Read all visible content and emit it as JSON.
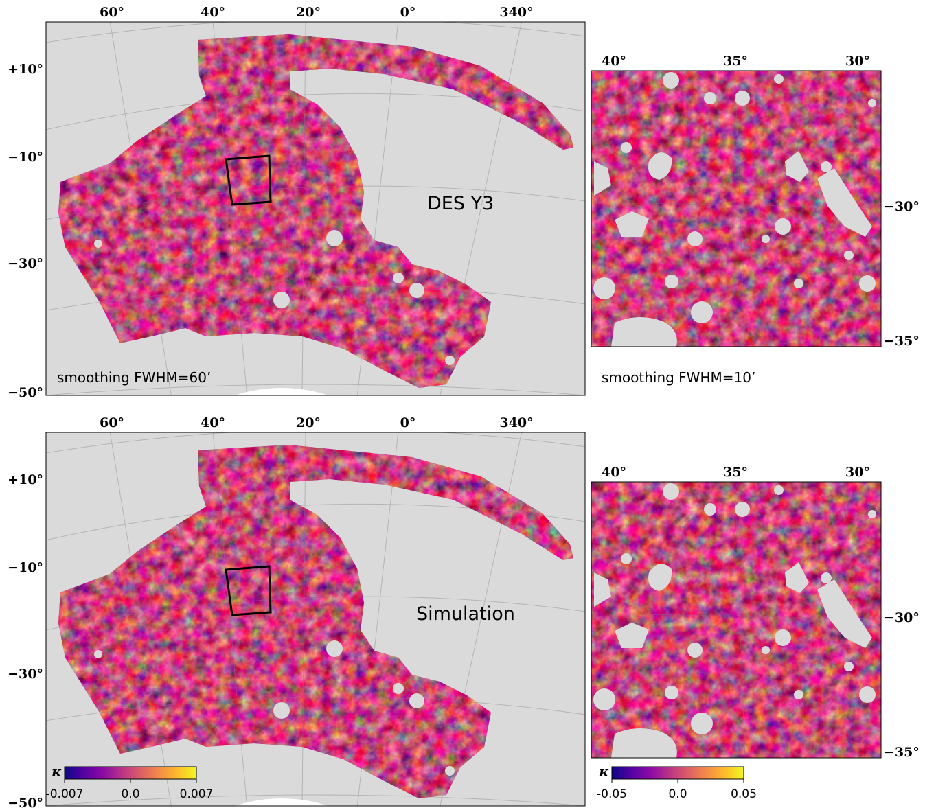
{
  "panels": {
    "top_left": {
      "label": "DES Y3",
      "smoothing": "smoothing FWHM=60’",
      "ra_ticks": [
        "60°",
        "40°",
        "20°",
        "0°",
        "340°"
      ],
      "dec_ticks": [
        "+10°",
        "−10°",
        "−30°",
        "−50°"
      ]
    },
    "top_right": {
      "smoothing": "smoothing FWHM=10’",
      "ra_ticks": [
        "40°",
        "35°",
        "30°"
      ],
      "dec_ticks": [
        "−30°",
        "−35°"
      ]
    },
    "bottom_left": {
      "label": "Simulation",
      "ra_ticks": [
        "60°",
        "40°",
        "20°",
        "0°",
        "340°"
      ],
      "dec_ticks": [
        "+10°",
        "−10°",
        "−30°",
        "−50°"
      ],
      "colorbar": {
        "symbol": "κ",
        "ticks": [
          "-0.007",
          "0.0",
          "0.007"
        ]
      }
    },
    "bottom_right": {
      "ra_ticks": [
        "40°",
        "35°",
        "30°"
      ],
      "dec_ticks": [
        "−30°",
        "−35°"
      ],
      "colorbar": {
        "symbol": "κ",
        "ticks": [
          "-0.05",
          "0.0",
          "0.05"
        ]
      }
    }
  },
  "colors": {
    "background_gray": "#dadada",
    "grid": "#b4b4b4",
    "colormap": [
      "#0d0887",
      "#5302a3",
      "#8b0aa5",
      "#b83289",
      "#db5c68",
      "#f48849",
      "#febd2a",
      "#f0f921"
    ]
  }
}
